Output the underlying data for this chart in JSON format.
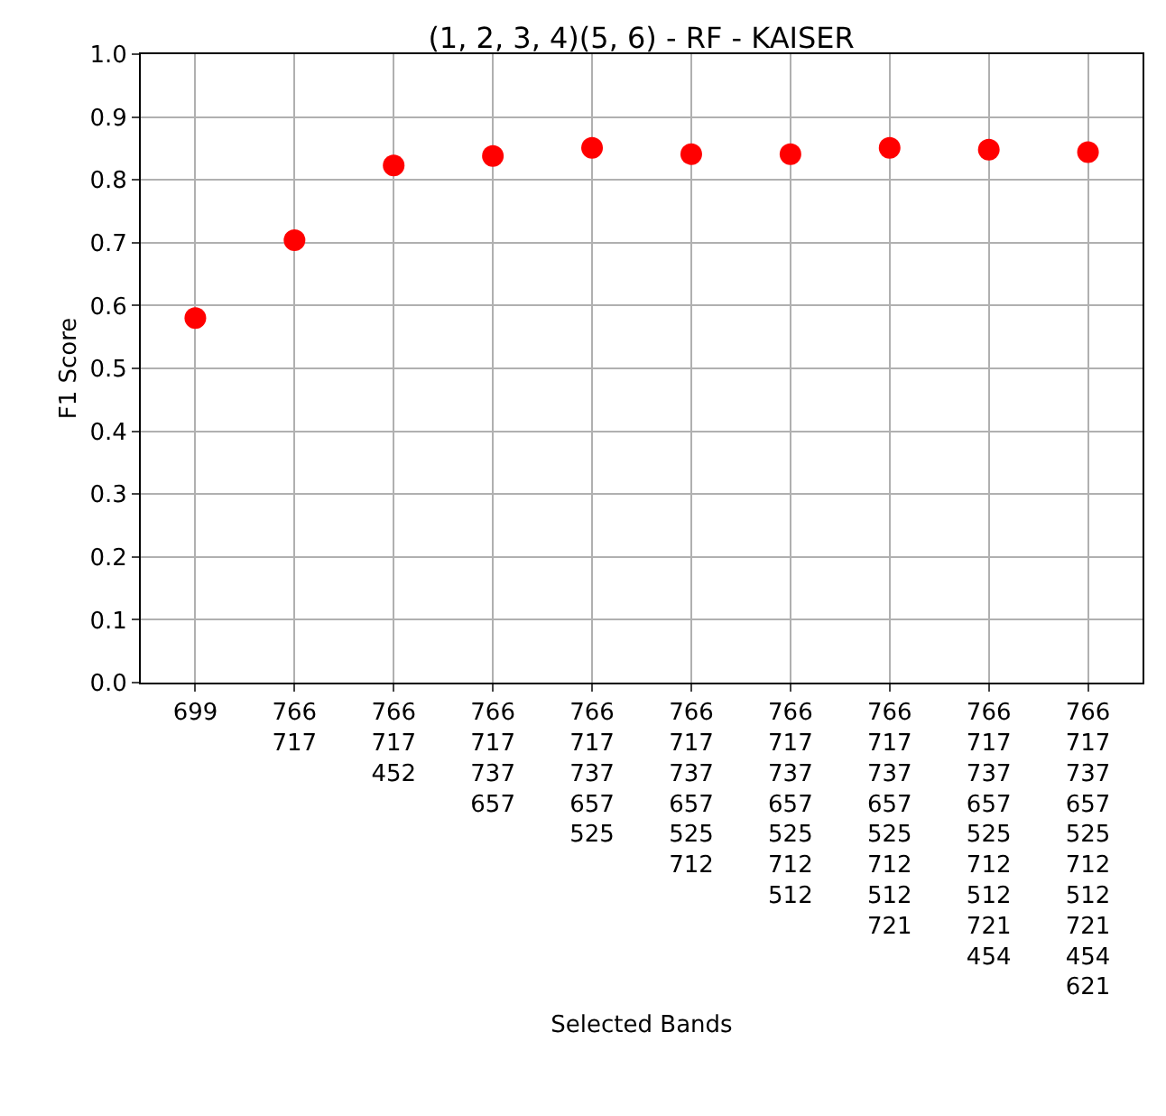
{
  "chart_data": {
    "type": "scatter",
    "title": "(1, 2, 3, 4)(5, 6) - RF - KAISER",
    "xlabel": "Selected Bands",
    "ylabel": "F1 Score",
    "categories": [
      "699",
      "766\n717",
      "766\n717\n452",
      "766\n717\n737\n657",
      "766\n717\n737\n657\n525",
      "766\n717\n737\n657\n525\n712",
      "766\n717\n737\n657\n525\n712\n512",
      "766\n717\n737\n657\n525\n712\n512\n721",
      "766\n717\n737\n657\n525\n712\n512\n721\n454",
      "766\n717\n737\n657\n525\n712\n512\n721\n454\n621"
    ],
    "series": [
      {
        "color": "#ff0000",
        "values": [
          0.58,
          0.704,
          0.823,
          0.838,
          0.851,
          0.841,
          0.841,
          0.851,
          0.848,
          0.844
        ]
      }
    ],
    "ylim": [
      0,
      1
    ],
    "yticks": [
      {
        "value": 0,
        "label": "0.0"
      },
      0.1,
      0.2,
      0.3,
      0.4,
      0.5,
      0.6,
      0.7,
      0.8,
      0.9,
      {
        "value": 1,
        "label": "1.0"
      }
    ],
    "grid": true,
    "marker": "circle"
  }
}
